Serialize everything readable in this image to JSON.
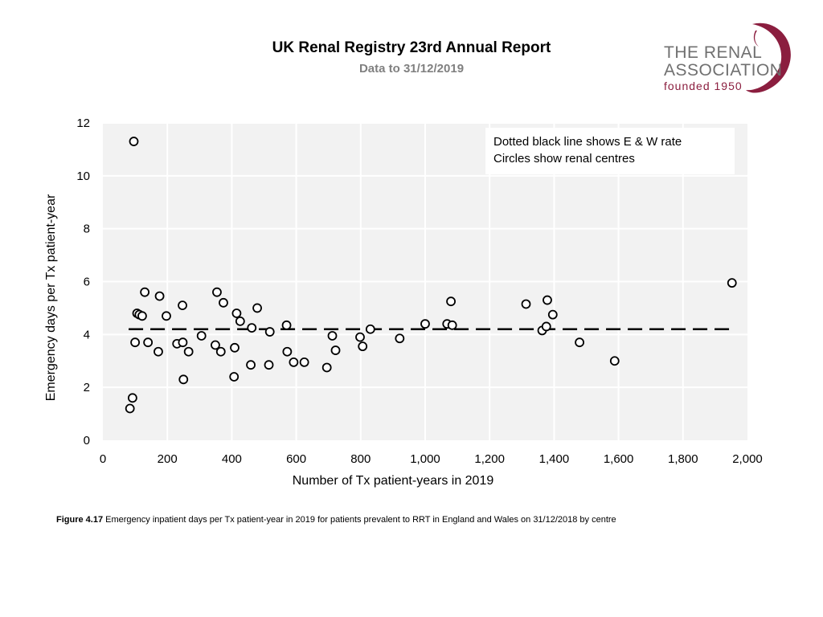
{
  "header": {
    "title": "UK Renal Registry 23rd Annual Report",
    "subtitle": "Data to 31/12/2019"
  },
  "logo": {
    "line1": "THE RENAL",
    "line2": "ASSOCIATION",
    "line3": "founded 1950"
  },
  "caption": {
    "label": "Figure 4.17",
    "text": " Emergency inpatient days per Tx patient-year in 2019 for patients prevalent to RRT in England and Wales on 31/12/2018 by centre"
  },
  "colors": {
    "plot_background": "#f2f2f2",
    "gridline": "#ffffff",
    "marker_stroke": "#000000",
    "logo_accent": "#8b1e3f",
    "logo_text": "#707070"
  },
  "chart_data": {
    "type": "scatter",
    "xlabel": "Number of Tx patient-years in 2019",
    "ylabel": "Emergency days per Tx patient-year",
    "xlim": [
      0,
      2000
    ],
    "ylim": [
      0,
      12
    ],
    "xticks": [
      0,
      200,
      400,
      600,
      800,
      1000,
      1200,
      1400,
      1600,
      1800,
      2000
    ],
    "xtick_labels": [
      "0",
      "200",
      "400",
      "600",
      "800",
      "1,000",
      "1,200",
      "1,400",
      "1,600",
      "1,800",
      "2,000"
    ],
    "yticks": [
      0,
      2,
      4,
      6,
      8,
      10,
      12
    ],
    "ytick_labels": [
      "0",
      "2",
      "4",
      "6",
      "8",
      "10",
      "12"
    ],
    "legend_lines": [
      "Dotted black line shows E & W rate",
      "Circles show renal centres"
    ],
    "legend_position": "top-right",
    "reference_line": {
      "y": 4.2,
      "x_range": [
        80,
        1950
      ],
      "style": "dashed"
    },
    "series": [
      {
        "name": "Renal centres",
        "points": [
          [
            84,
            1.2
          ],
          [
            92,
            1.6
          ],
          [
            96,
            11.3
          ],
          [
            100,
            3.7
          ],
          [
            106,
            4.8
          ],
          [
            113,
            4.75
          ],
          [
            122,
            4.7
          ],
          [
            130,
            5.6
          ],
          [
            140,
            3.7
          ],
          [
            172,
            3.35
          ],
          [
            176,
            5.45
          ],
          [
            197,
            4.7
          ],
          [
            230,
            3.65
          ],
          [
            247,
            5.1
          ],
          [
            248,
            3.7
          ],
          [
            250,
            2.3
          ],
          [
            266,
            3.35
          ],
          [
            306,
            3.95
          ],
          [
            349,
            3.6
          ],
          [
            354,
            5.6
          ],
          [
            366,
            3.35
          ],
          [
            374,
            5.2
          ],
          [
            407,
            2.4
          ],
          [
            409,
            3.5
          ],
          [
            415,
            4.8
          ],
          [
            426,
            4.5
          ],
          [
            459,
            2.85
          ],
          [
            462,
            4.25
          ],
          [
            479,
            5.0
          ],
          [
            515,
            2.85
          ],
          [
            518,
            4.1
          ],
          [
            570,
            4.35
          ],
          [
            572,
            3.35
          ],
          [
            592,
            2.95
          ],
          [
            625,
            2.95
          ],
          [
            695,
            2.75
          ],
          [
            712,
            3.95
          ],
          [
            722,
            3.4
          ],
          [
            798,
            3.9
          ],
          [
            806,
            3.55
          ],
          [
            830,
            4.2
          ],
          [
            921,
            3.85
          ],
          [
            1000,
            4.4
          ],
          [
            1068,
            4.4
          ],
          [
            1080,
            5.25
          ],
          [
            1084,
            4.35
          ],
          [
            1313,
            5.15
          ],
          [
            1363,
            4.15
          ],
          [
            1376,
            4.3
          ],
          [
            1379,
            5.3
          ],
          [
            1396,
            4.75
          ],
          [
            1479,
            3.7
          ],
          [
            1588,
            3.0
          ],
          [
            1952,
            5.95
          ]
        ]
      }
    ]
  }
}
